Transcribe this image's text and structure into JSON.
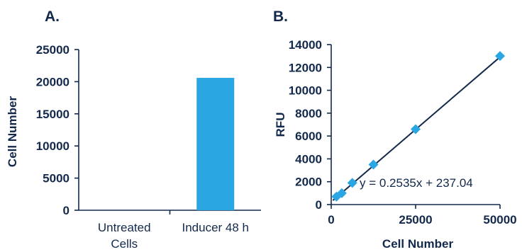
{
  "chart_data": [
    {
      "panel": "A.",
      "type": "bar",
      "categories": [
        "Untreated Cells",
        "Inducer 48 h"
      ],
      "category_lines": [
        [
          "Untreated",
          "Cells"
        ],
        [
          "Inducer 48 h"
        ]
      ],
      "values": [
        0,
        20600
      ],
      "ylabel": "Cell Number",
      "xlabel": "",
      "ylim": [
        0,
        25000
      ],
      "yticks": [
        0,
        5000,
        10000,
        15000,
        20000,
        25000
      ],
      "bar_color": "#2aa6e3"
    },
    {
      "panel": "B.",
      "type": "scatter",
      "x": [
        1562,
        3125,
        6250,
        12500,
        25000,
        50000
      ],
      "y": [
        700,
        1000,
        1900,
        3500,
        6600,
        13000
      ],
      "trendline": {
        "slope": 0.2535,
        "intercept": 237.04,
        "equation": "y = 0.2535x + 237.04"
      },
      "xlabel": "Cell Number",
      "ylabel": "RFU",
      "xlim": [
        0,
        50000
      ],
      "ylim": [
        0,
        14000
      ],
      "xticks": [
        0,
        25000,
        50000
      ],
      "yticks": [
        0,
        2000,
        4000,
        6000,
        8000,
        10000,
        12000,
        14000
      ],
      "marker_color": "#2aa6e3",
      "line_color": "#13294b"
    }
  ]
}
